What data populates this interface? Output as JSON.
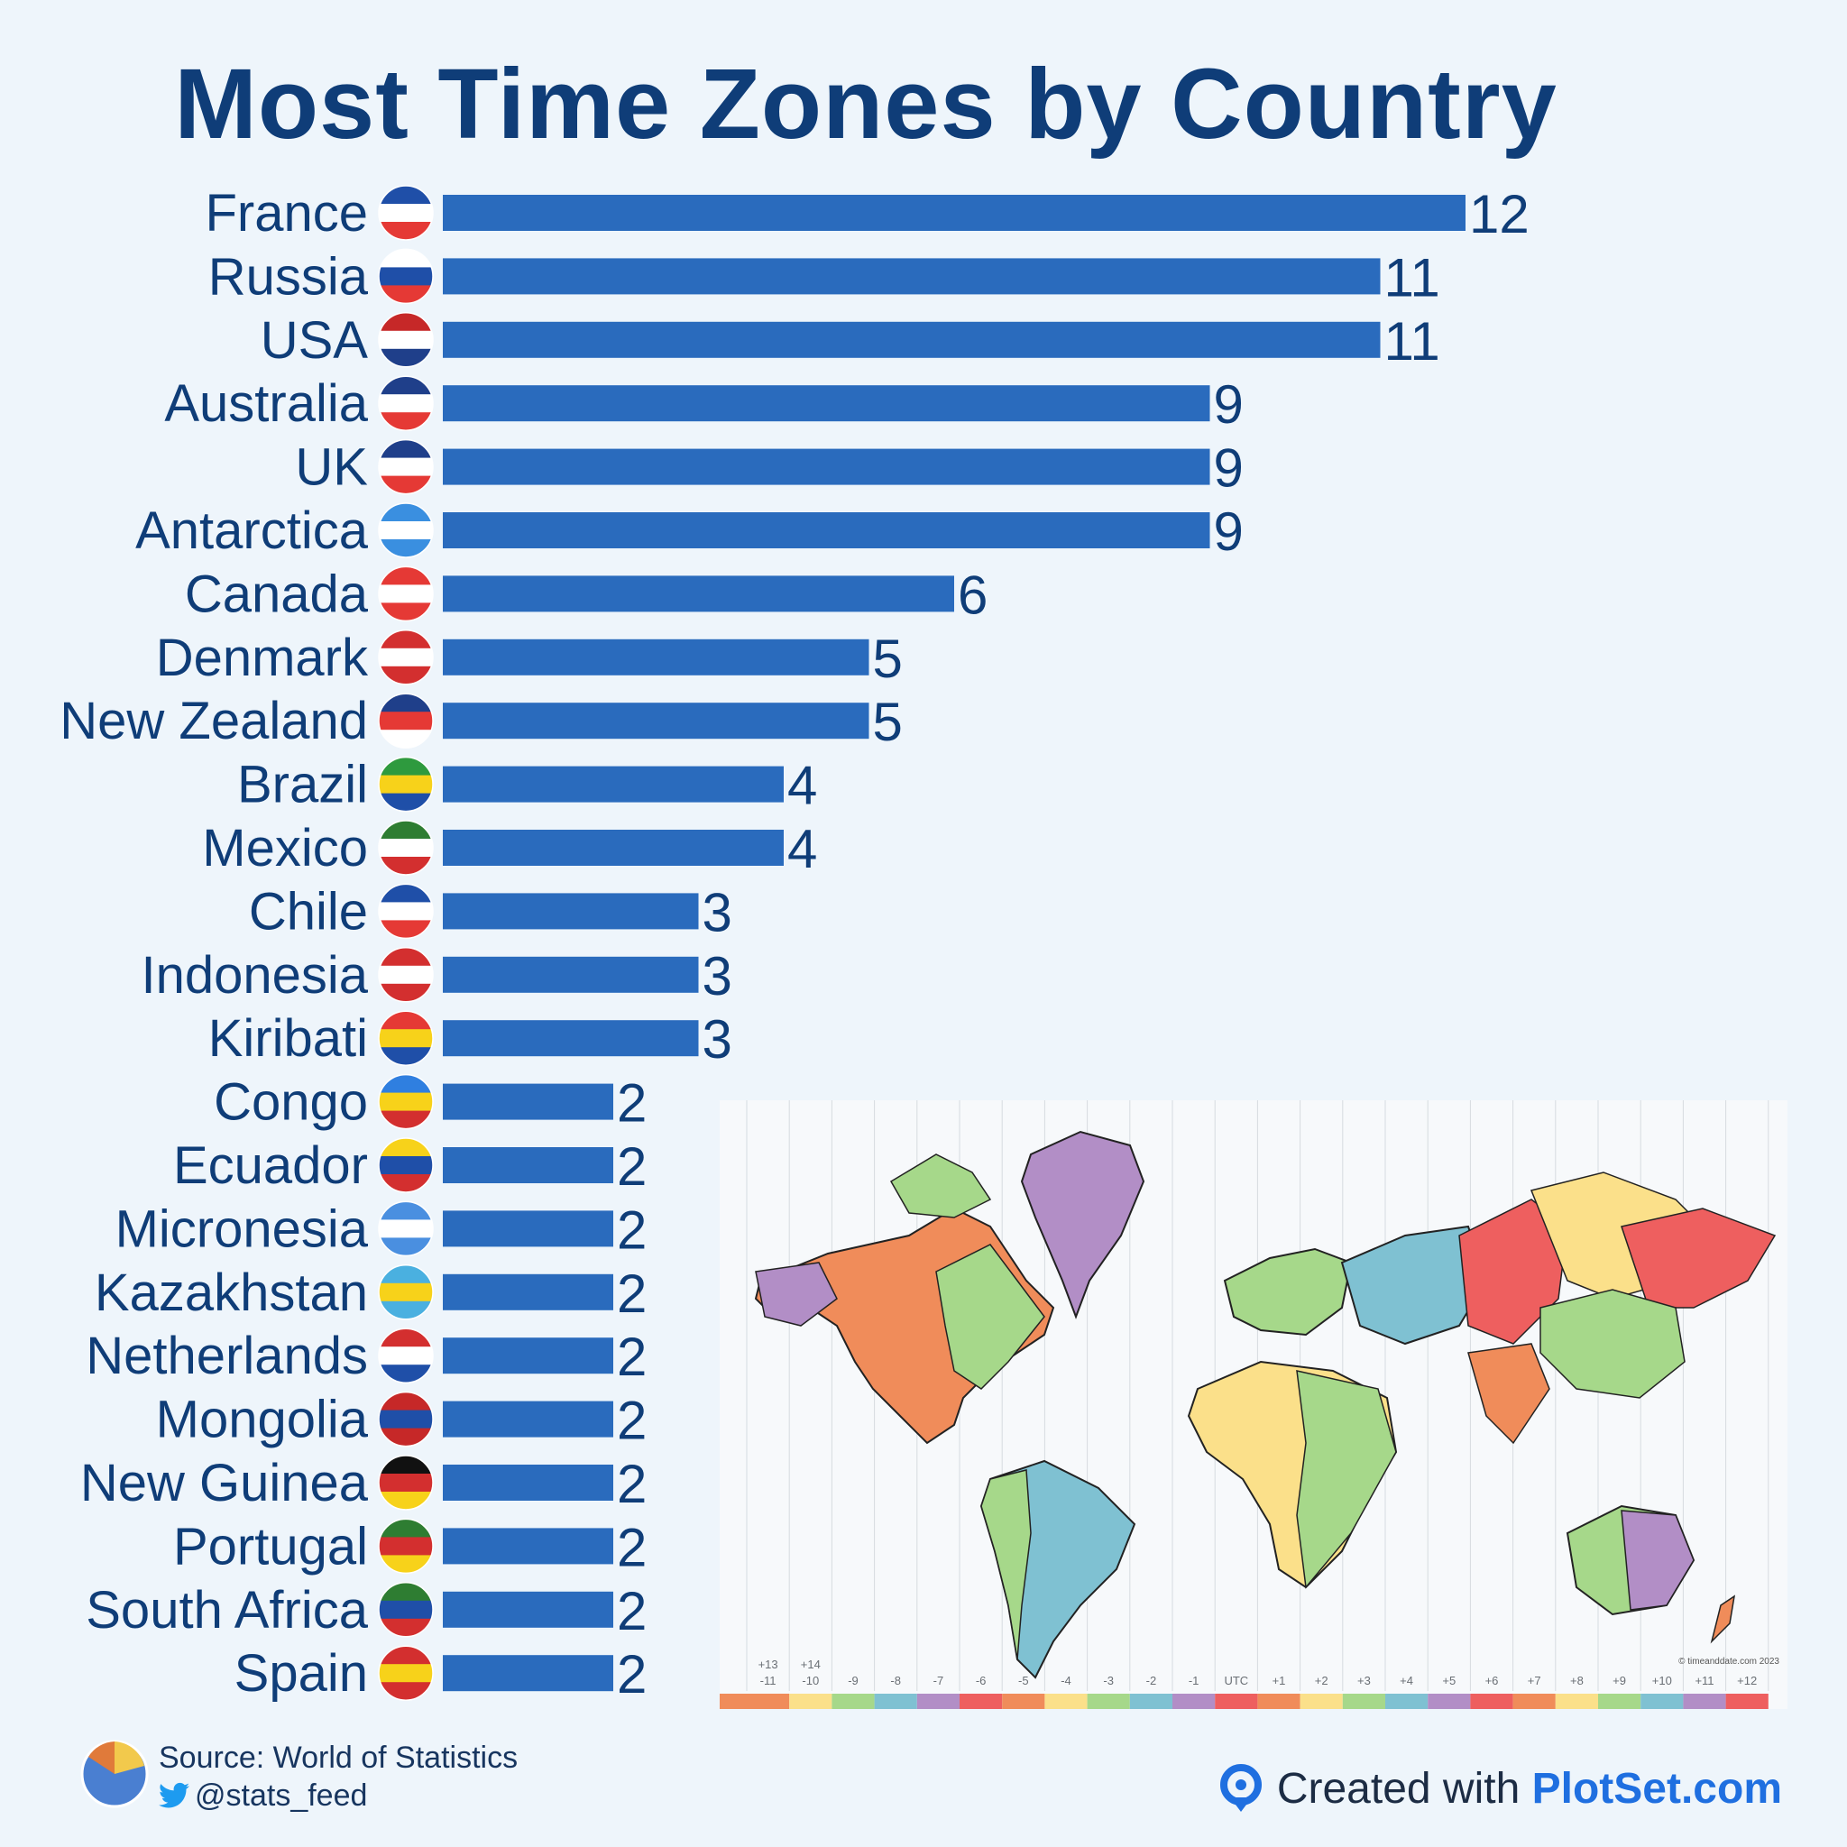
{
  "title": "Most Time Zones by Country",
  "chart_data": {
    "type": "bar",
    "orientation": "horizontal",
    "title": "Most Time Zones by Country",
    "categories": [
      "France",
      "Russia",
      "USA",
      "Australia",
      "UK",
      "Antarctica",
      "Canada",
      "Denmark",
      "New Zealand",
      "Brazil",
      "Mexico",
      "Chile",
      "Indonesia",
      "Kiribati",
      "Congo",
      "Ecuador",
      "Micronesia",
      "Kazakhstan",
      "Netherlands",
      "Mongolia",
      "New Guinea",
      "Portugal",
      "South Africa",
      "Spain"
    ],
    "values": [
      12,
      11,
      11,
      9,
      9,
      9,
      6,
      5,
      5,
      4,
      4,
      3,
      3,
      3,
      2,
      2,
      2,
      2,
      2,
      2,
      2,
      2,
      2,
      2
    ],
    "value_labels": [
      "12",
      "11",
      "11",
      "9",
      "9",
      "9",
      "6",
      "5",
      "5",
      "4",
      "4",
      "3",
      "3",
      "3",
      "2",
      "2",
      "2",
      "2",
      "2",
      "2",
      "2",
      "2",
      "2",
      "2"
    ],
    "xlim": [
      0,
      12
    ],
    "xlabel": "",
    "ylabel": "",
    "grid": false,
    "bar_color": "#2a6bbd"
  },
  "map": {
    "tz_labels": [
      "-11",
      "-10",
      "-9",
      "-8",
      "-7",
      "-6",
      "-5",
      "-4",
      "-3",
      "-2",
      "-1",
      "UTC",
      "+1",
      "+2",
      "+3",
      "+4",
      "+5",
      "+6",
      "+7",
      "+8",
      "+9",
      "+10",
      "+11",
      "+12"
    ],
    "tz_upper_labels": [
      "+13",
      "+14"
    ],
    "copyright": "© timeanddate.com 2023",
    "stripe_colors": [
      "#f08c5a",
      "#fbe08a",
      "#a6d88a",
      "#7fc1d2",
      "#b28ec6",
      "#ee5f5f"
    ]
  },
  "footer": {
    "source": "Source: World of Statistics",
    "twitter": "@stats_feed",
    "created_prefix": "Created with ",
    "created_brand": "PlotSet.com"
  },
  "colors": {
    "title": "#0f3d78",
    "background": "#eef5fb",
    "brand": "#1f6fe0"
  }
}
